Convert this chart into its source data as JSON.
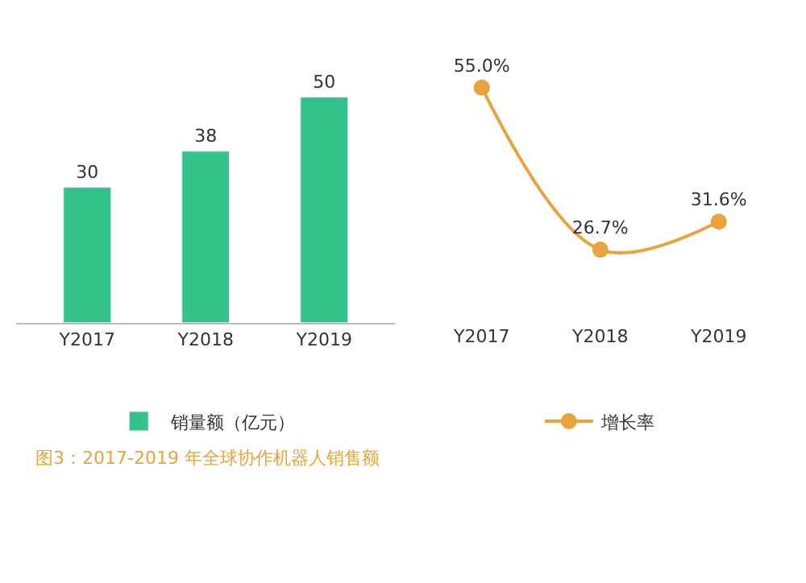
{
  "chart_data": [
    {
      "type": "bar",
      "categories": [
        "Y2017",
        "Y2018",
        "Y2019"
      ],
      "series": [
        {
          "name": "销量额（亿元）",
          "color": "#33c28a",
          "values": [
            30,
            38,
            50
          ]
        }
      ],
      "data_labels": true,
      "legend": "bottom",
      "tick_labels": "x",
      "annotations": [
        "图3：2017-2019 年全球协作机器人销售额"
      ]
    },
    {
      "type": "line",
      "categories": [
        "Y2017",
        "Y2018",
        "Y2019"
      ],
      "series": [
        {
          "name": "增长率",
          "color": "#e8a33a",
          "values": [
            55.0,
            26.7,
            31.6
          ],
          "value_labels": [
            "55.0%",
            "26.7%",
            "31.6%"
          ]
        }
      ],
      "marker": "circle",
      "line_style": "solid",
      "legend": "bottom",
      "tick_labels": "x"
    }
  ]
}
